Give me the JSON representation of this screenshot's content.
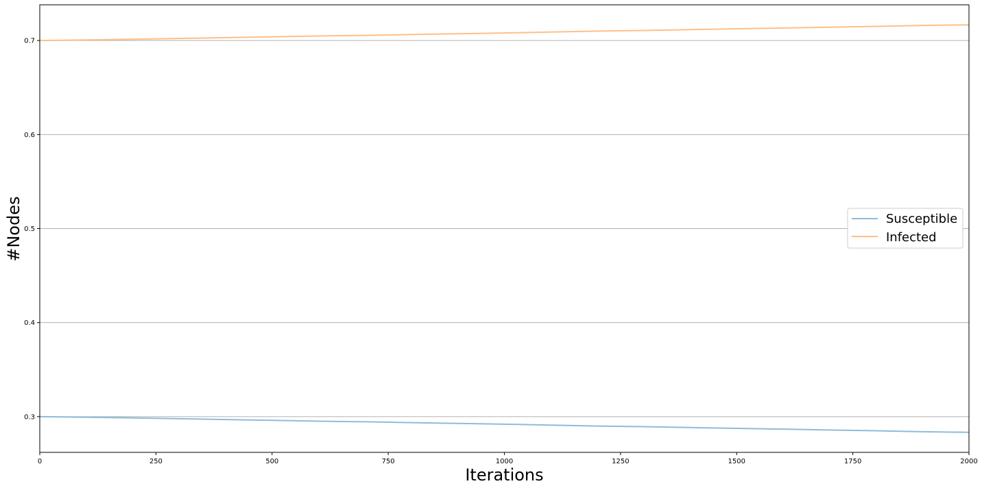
{
  "chart_data": {
    "type": "line",
    "title": "",
    "xlabel": "Iterations",
    "ylabel": "#Nodes",
    "xlim": [
      0,
      2000
    ],
    "ylim": [
      0.262,
      0.738
    ],
    "grid": "horizontal",
    "legend_position": "center-right",
    "x_ticks": [
      {
        "value": 0,
        "label": "0"
      },
      {
        "value": 250,
        "label": "250"
      },
      {
        "value": 500,
        "label": "500"
      },
      {
        "value": 750,
        "label": "750"
      },
      {
        "value": 1000,
        "label": "1000"
      },
      {
        "value": 1250,
        "label": "1250"
      },
      {
        "value": 1500,
        "label": "1500"
      },
      {
        "value": 1750,
        "label": "1750"
      },
      {
        "value": 2000,
        "label": "2000"
      }
    ],
    "y_ticks": [
      {
        "value": 0.3,
        "label": "0.3"
      },
      {
        "value": 0.4,
        "label": "0.4"
      },
      {
        "value": 0.5,
        "label": "0.5"
      },
      {
        "value": 0.6,
        "label": "0.6"
      },
      {
        "value": 0.7,
        "label": "0.7"
      }
    ],
    "x": [
      0,
      100,
      200,
      300,
      400,
      500,
      600,
      700,
      800,
      900,
      1000,
      1100,
      1200,
      1300,
      1400,
      1500,
      1600,
      1700,
      1800,
      1900,
      2000
    ],
    "series": [
      {
        "name": "Susceptible",
        "color": "#8fbbd9",
        "values": [
          0.3,
          0.2994,
          0.2986,
          0.2978,
          0.2969,
          0.2961,
          0.2952,
          0.2945,
          0.2936,
          0.2928,
          0.292,
          0.291,
          0.29,
          0.2893,
          0.2884,
          0.2875,
          0.2867,
          0.2858,
          0.285,
          0.284,
          0.2833
        ]
      },
      {
        "name": "Infected",
        "color": "#ffbf86",
        "values": [
          0.7,
          0.7006,
          0.7014,
          0.7022,
          0.7031,
          0.7039,
          0.7048,
          0.7055,
          0.7064,
          0.7072,
          0.708,
          0.709,
          0.71,
          0.7107,
          0.7116,
          0.7125,
          0.7133,
          0.7142,
          0.715,
          0.716,
          0.7167
        ]
      }
    ]
  }
}
